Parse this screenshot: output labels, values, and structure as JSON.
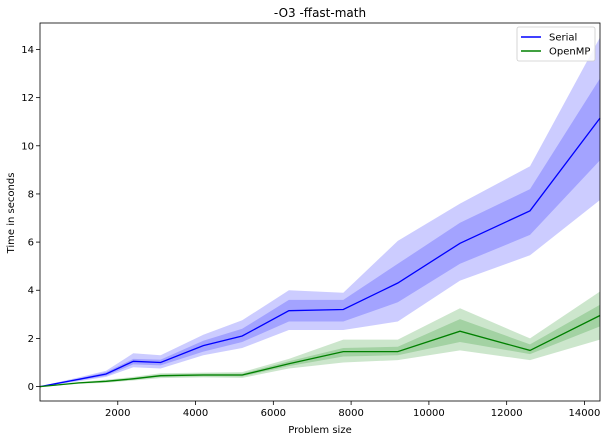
{
  "chart_data": {
    "type": "line",
    "title": "-O3 -ffast-math",
    "xlabel": "Problem size",
    "ylabel": "Time in seconds",
    "xlim": [
      0,
      14400
    ],
    "ylim": [
      -0.6,
      15.1
    ],
    "xticks": [
      2000,
      4000,
      6000,
      8000,
      10000,
      12000,
      14000
    ],
    "yticks": [
      0,
      2,
      4,
      6,
      8,
      10,
      12,
      14
    ],
    "legend_position": "top-right",
    "grid": false,
    "x": [
      0,
      400,
      1000,
      1700,
      2400,
      3100,
      4200,
      5200,
      6400,
      7800,
      9200,
      10800,
      12600,
      14400
    ],
    "series": [
      {
        "name": "Serial",
        "color": "#0000ff",
        "band_color": "#0000ff",
        "values": [
          0.0,
          0.12,
          0.3,
          0.52,
          1.05,
          1.0,
          1.7,
          2.1,
          3.15,
          3.2,
          4.3,
          5.95,
          7.3,
          11.15
        ],
        "inner_low": [
          0.0,
          0.1,
          0.26,
          0.45,
          0.92,
          0.88,
          1.45,
          1.85,
          2.7,
          2.7,
          3.5,
          5.1,
          6.3,
          9.4
        ],
        "inner_high": [
          0.0,
          0.14,
          0.34,
          0.6,
          1.15,
          1.12,
          1.9,
          2.4,
          3.6,
          3.6,
          5.1,
          6.8,
          8.2,
          12.8
        ],
        "outer_low": [
          0.0,
          0.08,
          0.22,
          0.4,
          0.8,
          0.75,
          1.3,
          1.6,
          2.35,
          2.35,
          2.7,
          4.4,
          5.45,
          7.75
        ],
        "outer_high": [
          0.0,
          0.16,
          0.38,
          0.66,
          1.38,
          1.3,
          2.15,
          2.75,
          4.0,
          3.9,
          6.05,
          7.6,
          9.15,
          14.5
        ]
      },
      {
        "name": "OpenMP",
        "color": "#008000",
        "band_color": "#008000",
        "values": [
          0.0,
          0.06,
          0.15,
          0.22,
          0.32,
          0.45,
          0.48,
          0.48,
          0.95,
          1.45,
          1.45,
          2.3,
          1.5,
          2.95
        ],
        "inner_low": [
          0.0,
          0.05,
          0.13,
          0.19,
          0.28,
          0.4,
          0.43,
          0.42,
          0.85,
          1.25,
          1.3,
          1.85,
          1.35,
          2.5
        ],
        "inner_high": [
          0.0,
          0.07,
          0.17,
          0.25,
          0.36,
          0.5,
          0.53,
          0.54,
          1.05,
          1.6,
          1.65,
          2.8,
          1.75,
          3.4
        ],
        "outer_low": [
          0.0,
          0.04,
          0.11,
          0.16,
          0.25,
          0.35,
          0.38,
          0.36,
          0.75,
          1.0,
          1.1,
          1.5,
          1.1,
          1.95
        ],
        "outer_high": [
          0.0,
          0.08,
          0.19,
          0.28,
          0.4,
          0.55,
          0.58,
          0.6,
          1.15,
          1.95,
          1.95,
          3.25,
          2.0,
          3.95
        ]
      }
    ]
  }
}
